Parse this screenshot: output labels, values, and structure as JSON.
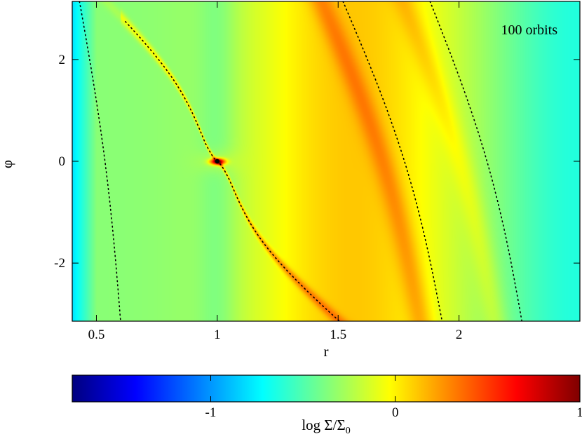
{
  "chart_data": {
    "type": "heatmap",
    "annotation": "100 orbits",
    "xlabel": "r",
    "ylabel": "φ",
    "xlim": [
      0.4,
      2.5
    ],
    "ylim": [
      -3.14159,
      3.14159
    ],
    "x_ticks": [
      {
        "value": 0.5,
        "label": "0.5"
      },
      {
        "value": 1,
        "label": "1"
      },
      {
        "value": 1.5,
        "label": "1.5"
      },
      {
        "value": 2,
        "label": "2"
      }
    ],
    "y_ticks": [
      {
        "value": 2,
        "label": "2"
      },
      {
        "value": 0,
        "label": "0"
      },
      {
        "value": -2,
        "label": "-2"
      }
    ],
    "planet": {
      "r": 1.0,
      "phi": 0.0
    },
    "colorbar": {
      "label": "log Σ/Σ",
      "label_subscript": "0",
      "range": [
        -1.75,
        1.0
      ],
      "ticks": [
        {
          "value": -1,
          "label": "-1"
        },
        {
          "value": 0,
          "label": "0"
        },
        {
          "value": 1,
          "label": "1"
        }
      ],
      "colormap": [
        "#00007f",
        "#0000ff",
        "#007fff",
        "#00ffff",
        "#7fff7f",
        "#ffff00",
        "#ff7f00",
        "#ff0000",
        "#7f0000"
      ]
    },
    "field_description": {
      "background_level": -0.35,
      "inner_edge_r": 0.45,
      "outer_level": 0.05
    },
    "dotted_curves": [
      {
        "name": "inner-resonance",
        "r0": 0.43,
        "r1": 0.6
      },
      {
        "name": "wake",
        "r0": 1.0,
        "r1": 1.0
      },
      {
        "name": "outer-resonance-1",
        "r0": 1.52,
        "r1": 1.93
      },
      {
        "name": "outer-resonance-2",
        "r0": 1.88,
        "r1": 2.26
      }
    ]
  }
}
